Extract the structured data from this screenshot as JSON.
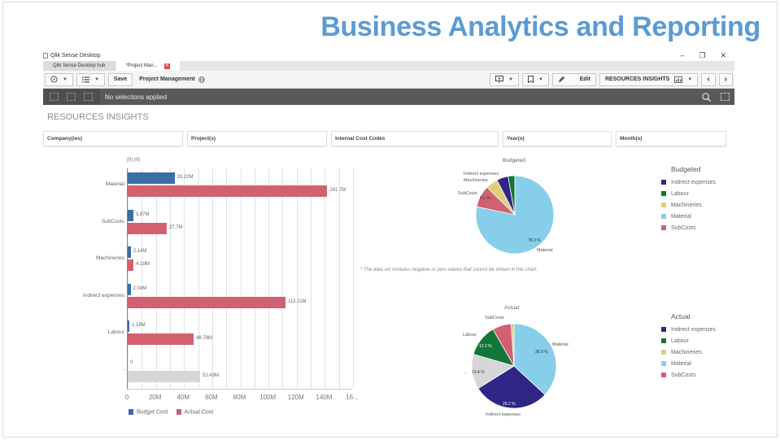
{
  "slide": {
    "title": "Business Analytics and Reporting"
  },
  "window": {
    "title": "Qlik Sense Desktop",
    "controls": {
      "minimize": "–",
      "restore": "❐",
      "close": "✕"
    },
    "tabs": [
      {
        "label": "Qlik Sense Desktop hub",
        "active": false
      },
      {
        "label": "*Project Man...",
        "active": true,
        "close": "✕"
      }
    ]
  },
  "toolbar": {
    "save_label": "Save",
    "app_name": "Project Management",
    "edit_label": "Edit",
    "sheet_selector": "RESOURCES INSIGHTS",
    "prev": "‹",
    "next": "›"
  },
  "selections": {
    "text": "No selections applied"
  },
  "sheet": {
    "title": "RESOURCES INSIGHTS"
  },
  "filters": [
    {
      "label": "Company(ies)"
    },
    {
      "label": "Project(s)"
    },
    {
      "label": "Internal Cost Codes"
    },
    {
      "label": "Year(s)"
    },
    {
      "label": "Month(s)"
    }
  ],
  "note": "* The data set contains negative or zero values that cannot be shown in this chart.",
  "chart_data": [
    {
      "type": "bar",
      "orientation": "horizontal",
      "title": "",
      "top_note": "(0) (0)",
      "categories": [
        "Material",
        "SubCosts",
        "Machineries",
        "Indirect expenses",
        "Labour",
        "-"
      ],
      "series": [
        {
          "name": "Budget Cost",
          "color": "#3a6ea5",
          "values": [
            33.22,
            3.87,
            2.14,
            2.04,
            1.18,
            0
          ],
          "labels": [
            "33.22M",
            "3.87M",
            "2.14M",
            "2.04M",
            "1.18M",
            "0"
          ]
        },
        {
          "name": "Actual Cost",
          "color": "#d16070",
          "values": [
            141.7,
            27.7,
            4.19,
            112.11,
            46.78,
            51.43
          ],
          "labels": [
            "141.7M",
            "27.7M",
            "4.19M",
            "112.11M",
            "46.78M",
            "51.43M"
          ]
        }
      ],
      "xticks": [
        "0",
        "20M",
        "40M",
        "60M",
        "80M",
        "100M",
        "120M",
        "140M",
        "16..."
      ],
      "xlim": [
        0,
        160
      ],
      "grid": true,
      "legend_position": "bottom"
    },
    {
      "type": "pie",
      "title": "Budgeted",
      "slices": [
        {
          "label": "Material",
          "value": 78.3,
          "pct_label": "78.3 %",
          "color": "#87ceeb"
        },
        {
          "label": "SubCosts",
          "value": 9.1,
          "pct_label": "9.1 %",
          "color": "#d16070"
        },
        {
          "label": "Machineries",
          "value": 5.0,
          "color": "#e1cd7a"
        },
        {
          "label": "Indirect expenses",
          "value": 4.8,
          "color": "#2e2587"
        },
        {
          "label": "Labour",
          "value": 2.8,
          "color": "#147538"
        }
      ],
      "legend": {
        "title": "Budgeted",
        "items": [
          "Indirect expenses",
          "Labour",
          "Machineries",
          "Material",
          "SubCosts"
        ]
      }
    },
    {
      "type": "pie",
      "title": "Actual",
      "slices": [
        {
          "label": "Material",
          "value": 36.9,
          "pct_label": "36.9 %",
          "color": "#87ceeb"
        },
        {
          "label": "Indirect expenses",
          "value": 29.2,
          "pct_label": "29.2 %",
          "color": "#2e2587"
        },
        {
          "label": "-",
          "value": 13.4,
          "pct_label": "13.4 %",
          "color": "#d6d6d6"
        },
        {
          "label": "Labour",
          "value": 12.2,
          "pct_label": "12.2 %",
          "color": "#147538"
        },
        {
          "label": "SubCosts",
          "value": 7.2,
          "color": "#d16070"
        },
        {
          "label": "Machineries",
          "value": 1.1,
          "color": "#e1cd7a"
        }
      ],
      "legend": {
        "title": "Actual",
        "items": [
          "Indirect expenses",
          "Labour",
          "Machineries",
          "Material",
          "SubCosts"
        ]
      }
    }
  ],
  "legend_colors": {
    "Indirect expenses": "#2e2587",
    "Labour": "#147538",
    "Machineries": "#e1cd7a",
    "Material": "#87ceeb",
    "SubCosts": "#d16070"
  }
}
